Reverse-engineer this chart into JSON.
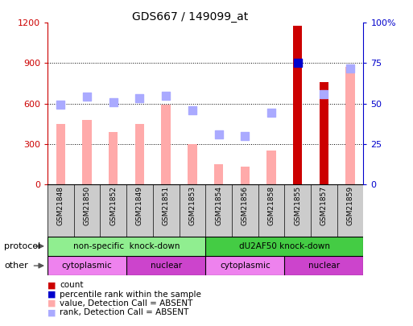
{
  "title": "GDS667 / 149099_at",
  "samples": [
    "GSM21848",
    "GSM21850",
    "GSM21852",
    "GSM21849",
    "GSM21851",
    "GSM21853",
    "GSM21854",
    "GSM21856",
    "GSM21858",
    "GSM21855",
    "GSM21857",
    "GSM21859"
  ],
  "bar_values": [
    450,
    480,
    390,
    450,
    590,
    300,
    150,
    130,
    250,
    1180,
    760,
    870
  ],
  "bar_colors": [
    "#ffaaaa",
    "#ffaaaa",
    "#ffaaaa",
    "#ffaaaa",
    "#ffaaaa",
    "#ffaaaa",
    "#ffaaaa",
    "#ffaaaa",
    "#ffaaaa",
    "#cc0000",
    "#cc0000",
    "#ffaaaa"
  ],
  "dot_values": [
    590,
    650,
    610,
    640,
    660,
    550,
    370,
    360,
    530,
    900,
    670,
    860
  ],
  "dot_colors": [
    "#aaaaff",
    "#aaaaff",
    "#aaaaff",
    "#aaaaff",
    "#aaaaff",
    "#aaaaff",
    "#aaaaff",
    "#aaaaff",
    "#aaaaff",
    "#0000cc",
    "#aaaaff",
    "#aaaaff"
  ],
  "ylim_left": [
    0,
    1200
  ],
  "ylim_right": [
    0,
    100
  ],
  "yticks_left": [
    0,
    300,
    600,
    900,
    1200
  ],
  "yticks_right": [
    0,
    25,
    50,
    75,
    100
  ],
  "ytick_labels_right": [
    "0",
    "25",
    "50",
    "75",
    "100%"
  ],
  "protocol_groups": [
    {
      "label": "non-specific  knock-down",
      "start": 0,
      "end": 6,
      "color": "#90ee90"
    },
    {
      "label": "dU2AF50 knock-down",
      "start": 6,
      "end": 12,
      "color": "#44cc44"
    }
  ],
  "other_groups": [
    {
      "label": "cytoplasmic",
      "start": 0,
      "end": 3,
      "color": "#ee82ee"
    },
    {
      "label": "nuclear",
      "start": 3,
      "end": 6,
      "color": "#cc44cc"
    },
    {
      "label": "cytoplasmic",
      "start": 6,
      "end": 9,
      "color": "#ee82ee"
    },
    {
      "label": "nuclear",
      "start": 9,
      "end": 12,
      "color": "#cc44cc"
    }
  ],
  "legend_items": [
    {
      "label": "count",
      "color": "#cc0000"
    },
    {
      "label": "percentile rank within the sample",
      "color": "#0000cc"
    },
    {
      "label": "value, Detection Call = ABSENT",
      "color": "#ffaaaa"
    },
    {
      "label": "rank, Detection Call = ABSENT",
      "color": "#aaaaff"
    }
  ],
  "protocol_label": "protocol",
  "other_label": "other",
  "left_axis_color": "#cc0000",
  "right_axis_color": "#0000cc",
  "bg_color": "#ffffff",
  "bar_width": 0.35,
  "dot_size": 45
}
